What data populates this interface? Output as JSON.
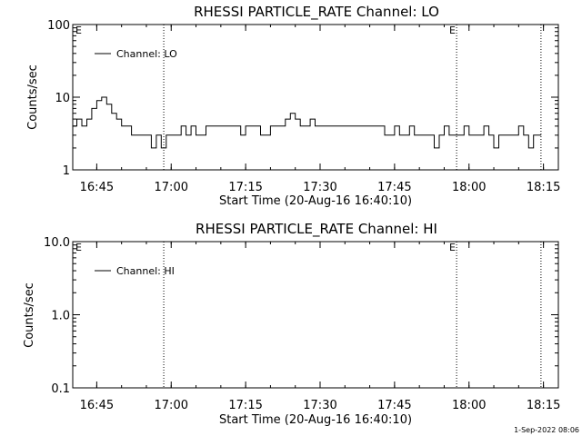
{
  "chart_data": [
    {
      "type": "line",
      "title": "RHESSI PARTICLE_RATE Channel: LO",
      "xlabel": "Start Time (20-Aug-16 16:40:10)",
      "ylabel": "Counts/sec",
      "yscale": "log",
      "ylim": [
        1,
        100
      ],
      "xlim": [
        "16:40:10",
        "18:18:00"
      ],
      "xticks": [
        "16:45",
        "17:00",
        "17:15",
        "17:30",
        "17:45",
        "18:00",
        "18:15"
      ],
      "yticks": [
        "1",
        "10",
        "100"
      ],
      "vlines": [
        "16:58:30",
        "17:57:30",
        "18:14:30"
      ],
      "markers": [
        {
          "text": "E",
          "x": "16:40:10"
        },
        {
          "text": "E",
          "x": "17:57:30"
        }
      ],
      "legend": {
        "position": "top-left",
        "entries": [
          "Channel: LO"
        ]
      },
      "series": [
        {
          "name": "Channel: LO",
          "x": [
            "16:40:10",
            "16:41:00",
            "16:42:00",
            "16:43:00",
            "16:44:00",
            "16:45:00",
            "16:46:00",
            "16:47:00",
            "16:48:00",
            "16:49:00",
            "16:50:00",
            "16:51:00",
            "16:52:00",
            "16:53:00",
            "16:54:00",
            "16:55:00",
            "16:56:00",
            "16:57:00",
            "16:58:00",
            "16:59:00",
            "17:00:00",
            "17:01:00",
            "17:02:00",
            "17:03:00",
            "17:04:00",
            "17:05:00",
            "17:07:00",
            "17:09:00",
            "17:11:00",
            "17:13:00",
            "17:14:00",
            "17:15:00",
            "17:16:00",
            "17:17:00",
            "17:18:00",
            "17:20:00",
            "17:22:00",
            "17:23:00",
            "17:24:00",
            "17:25:00",
            "17:26:00",
            "17:27:00",
            "17:28:00",
            "17:29:00",
            "17:30:00",
            "17:32:00",
            "17:34:00",
            "17:36:00",
            "17:38:00",
            "17:40:00",
            "17:42:00",
            "17:43:00",
            "17:44:00",
            "17:45:00",
            "17:46:00",
            "17:47:00",
            "17:48:00",
            "17:49:00",
            "17:50:00",
            "17:51:00",
            "17:52:00",
            "17:53:00",
            "17:54:00",
            "17:55:00",
            "17:56:00",
            "17:57:00",
            "17:58:00",
            "17:59:00",
            "18:00:00",
            "18:01:00",
            "18:02:00",
            "18:03:00",
            "18:04:00",
            "18:05:00",
            "18:06:00",
            "18:07:00",
            "18:08:00",
            "18:09:00",
            "18:10:00",
            "18:11:00",
            "18:12:00",
            "18:13:00",
            "18:14:00"
          ],
          "values": [
            4,
            5,
            4,
            5,
            7,
            9,
            10,
            8,
            6,
            5,
            4,
            4,
            3,
            3,
            3,
            3,
            2,
            3,
            2,
            3,
            3,
            3,
            4,
            3,
            4,
            3,
            4,
            4,
            4,
            4,
            3,
            4,
            4,
            4,
            3,
            4,
            4,
            5,
            6,
            5,
            4,
            4,
            5,
            4,
            4,
            4,
            4,
            4,
            4,
            4,
            4,
            3,
            3,
            4,
            3,
            3,
            4,
            3,
            3,
            3,
            3,
            2,
            3,
            4,
            3,
            3,
            3,
            4,
            3,
            3,
            3,
            4,
            3,
            2,
            3,
            3,
            3,
            3,
            4,
            3,
            2,
            3,
            3
          ]
        }
      ]
    },
    {
      "type": "line",
      "title": "RHESSI PARTICLE_RATE Channel: HI",
      "xlabel": "Start Time (20-Aug-16 16:40:10)",
      "ylabel": "Counts/sec",
      "yscale": "log",
      "ylim": [
        0.1,
        10.0
      ],
      "xlim": [
        "16:40:10",
        "18:18:00"
      ],
      "xticks": [
        "16:45",
        "17:00",
        "17:15",
        "17:30",
        "17:45",
        "18:00",
        "18:15"
      ],
      "yticks": [
        "0.1",
        "1.0",
        "10.0"
      ],
      "vlines": [
        "16:58:30",
        "17:57:30",
        "18:14:30"
      ],
      "markers": [
        {
          "text": "E",
          "x": "16:40:10"
        },
        {
          "text": "E",
          "x": "17:57:30"
        }
      ],
      "legend": {
        "position": "top-left",
        "entries": [
          "Channel: HI"
        ]
      },
      "series": [
        {
          "name": "Channel: HI",
          "x": [],
          "values": []
        }
      ]
    }
  ],
  "footer": {
    "timestamp": "1-Sep-2022 08:06"
  }
}
